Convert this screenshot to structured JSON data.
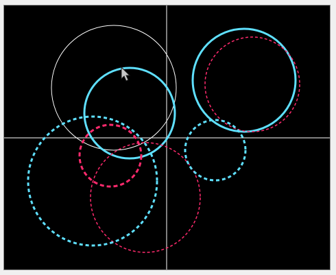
{
  "colors": {
    "window_background": "#f0f0f0",
    "canvas_background": "#000000",
    "axis": "#ffffff",
    "cyan": "#5fe0ff",
    "pink": "#ff2a6d",
    "white": "#ffffff",
    "cursor": "#c8c8c8"
  },
  "icons": {
    "cursor": "arrow-cursor-icon"
  }
}
